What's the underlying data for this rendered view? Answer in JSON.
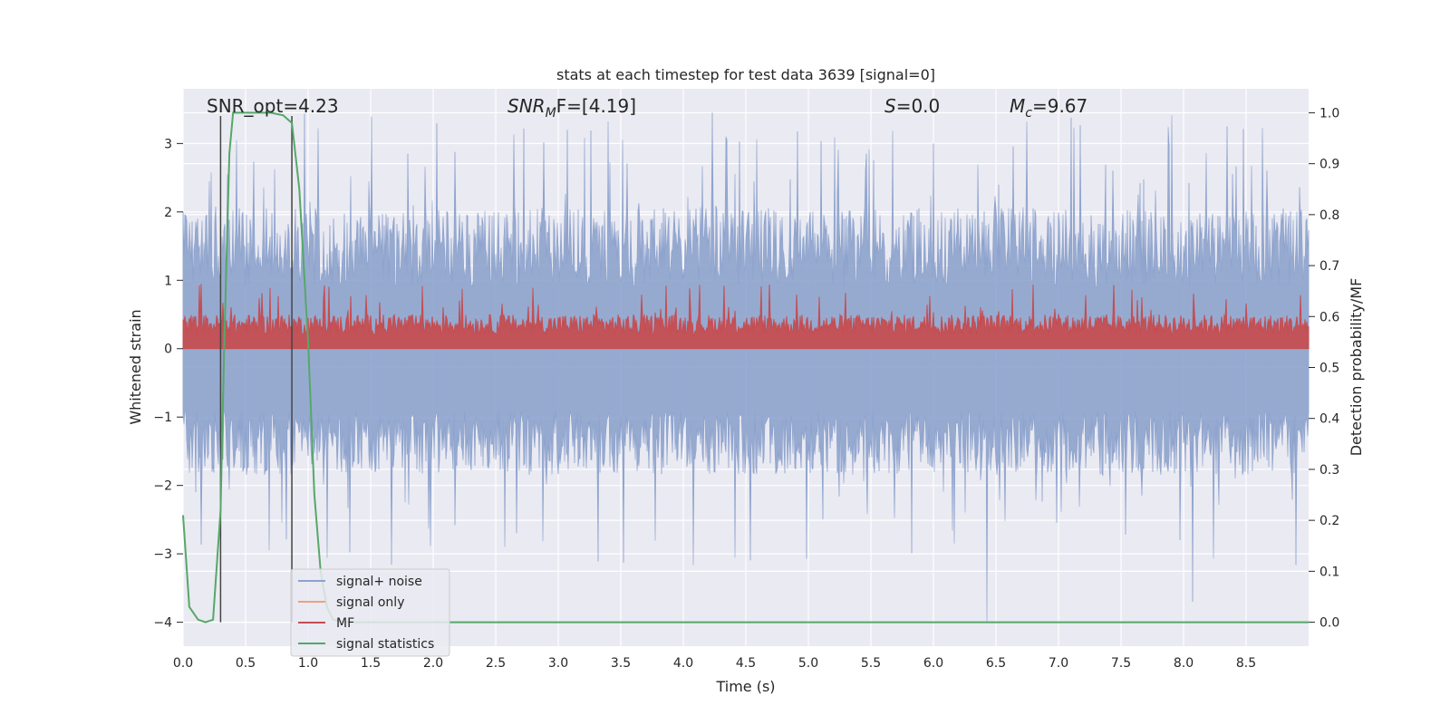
{
  "chart_data": {
    "type": "line",
    "title": "stats at each timestep for test data 3639 [signal=0]",
    "xlabel": "Time (s)",
    "ylabel": "Whitened strain",
    "y2label": "Detection probability/MF",
    "xlim": [
      0.0,
      9.0
    ],
    "ylim": [
      -4.35,
      3.8
    ],
    "y2lim": [
      -0.047,
      1.047
    ],
    "xticks": [
      "0.0",
      "0.5",
      "1.0",
      "1.5",
      "2.0",
      "2.5",
      "3.0",
      "3.5",
      "4.0",
      "4.5",
      "5.0",
      "5.5",
      "6.0",
      "6.5",
      "7.0",
      "7.5",
      "8.0",
      "8.5"
    ],
    "yticks": [
      "−4",
      "−3",
      "−2",
      "−1",
      "0",
      "1",
      "2",
      "3"
    ],
    "y2ticks": [
      "0.0",
      "0.1",
      "0.2",
      "0.3",
      "0.4",
      "0.5",
      "0.6",
      "0.7",
      "0.8",
      "0.9",
      "1.0"
    ],
    "grid": true,
    "legend_placement": "lower-left",
    "annotations": {
      "snr_opt": "SNR_opt=4.23",
      "snr_mf_main": "SNR",
      "snr_mf_sub": "M",
      "snr_mf_tail": "F=[4.19]",
      "s_main": "S",
      "s_tail": "=0.0",
      "mc_main": "M",
      "mc_sub": "c",
      "mc_tail": "=9.67"
    },
    "vlines": [
      0.3,
      0.87
    ],
    "series": [
      {
        "name": "signal+ noise",
        "color": "#8da2cc",
        "axis": "left",
        "envelope": {
          "upper_typical": 2.0,
          "lower_typical": -1.8,
          "upper_peak": 3.45,
          "lower_peak": -4.0
        }
      },
      {
        "name": "signal only",
        "color": "#e8a286",
        "axis": "left",
        "x": [
          0.0,
          9.0
        ],
        "y": [
          0.0,
          0.0
        ]
      },
      {
        "name": "MF",
        "color": "#c44e52",
        "axis": "left",
        "envelope": {
          "baseline": 0.0,
          "typical_top": 0.5,
          "peak_top": 0.95
        }
      },
      {
        "name": "signal statistics",
        "color": "#55a868",
        "axis": "right",
        "x": [
          0.0,
          0.05,
          0.12,
          0.18,
          0.24,
          0.3,
          0.33,
          0.37,
          0.4,
          0.5,
          0.6,
          0.7,
          0.8,
          0.87,
          0.93,
          1.0,
          1.05,
          1.1,
          1.15,
          1.2,
          1.3,
          9.0
        ],
        "y": [
          0.21,
          0.03,
          0.005,
          0.0,
          0.005,
          0.22,
          0.55,
          0.92,
          1.0,
          1.0,
          1.0,
          1.0,
          0.995,
          0.98,
          0.85,
          0.55,
          0.25,
          0.1,
          0.03,
          0.005,
          0.0,
          0.0
        ]
      }
    ]
  }
}
